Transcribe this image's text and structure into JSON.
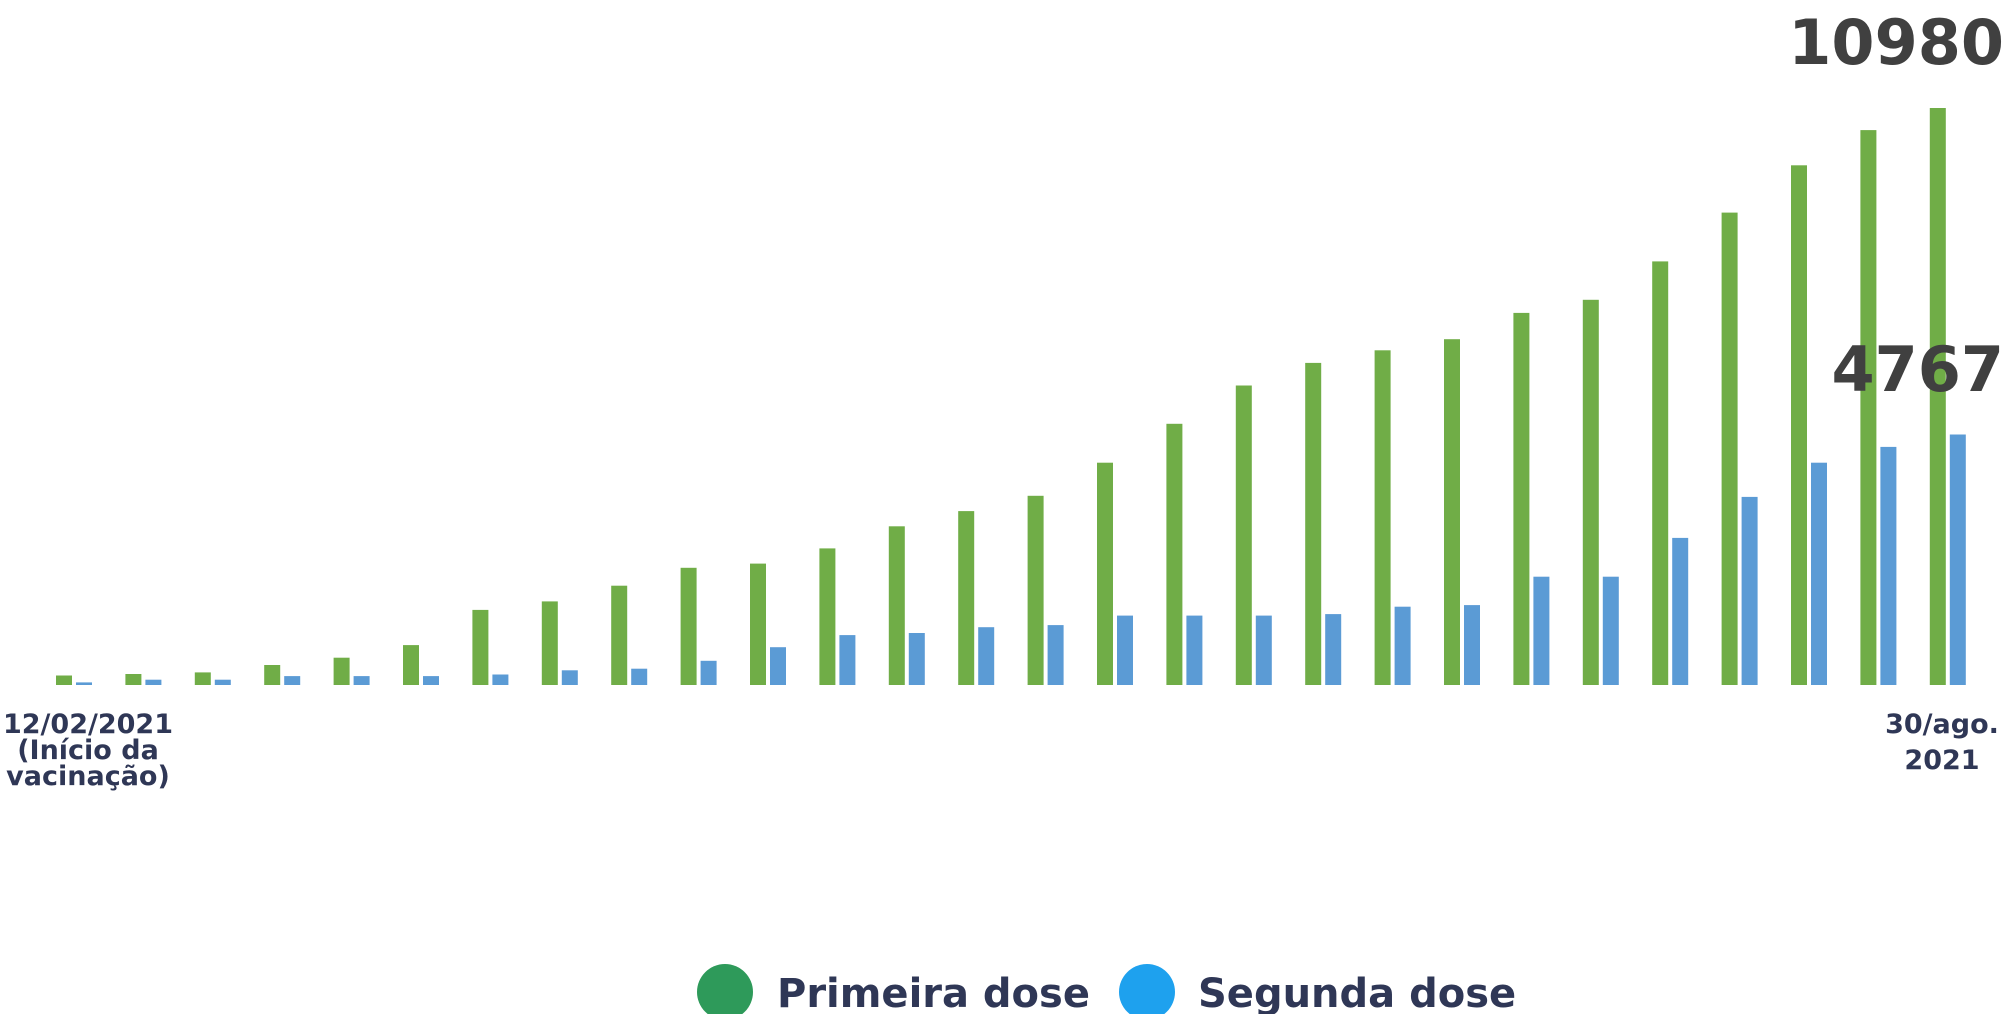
{
  "chart_data": {
    "type": "bar",
    "title": "",
    "xlabel": "",
    "ylabel": "",
    "ylim": [
      0,
      11500
    ],
    "grid": false,
    "legend_position": "bottom-center",
    "x_tick_labels": {
      "first": [
        "12/02/2021",
        "(Início da",
        "vacinação)"
      ],
      "last": [
        "30/ago.",
        "2021"
      ]
    },
    "series": [
      {
        "name": "Primeira dose",
        "color": "#70ad47",
        "values": [
          180,
          210,
          240,
          380,
          520,
          760,
          1430,
          1590,
          1890,
          2230,
          2310,
          2600,
          3020,
          3310,
          3600,
          4230,
          4970,
          5700,
          6130,
          6370,
          6580,
          7080,
          7330,
          8060,
          8990,
          9890,
          10560,
          10980
        ]
      },
      {
        "name": "Segunda dose",
        "color": "#5b9bd5",
        "values": [
          50,
          100,
          100,
          170,
          170,
          170,
          200,
          280,
          310,
          460,
          720,
          950,
          990,
          1100,
          1140,
          1320,
          1320,
          1320,
          1350,
          1490,
          1520,
          2060,
          2060,
          2800,
          3580,
          4230,
          4530,
          4767
        ]
      }
    ],
    "annotations": [
      {
        "text": "10980",
        "series": "Primeira dose",
        "point": "last"
      },
      {
        "text": "4767",
        "series": "Segunda dose",
        "point": "last"
      }
    ],
    "legend": {
      "primeira": {
        "label": "Primeira dose",
        "color": "#2e9a5a"
      },
      "segunda": {
        "label": "Segunda dose",
        "color": "#1ea1ee"
      }
    }
  }
}
